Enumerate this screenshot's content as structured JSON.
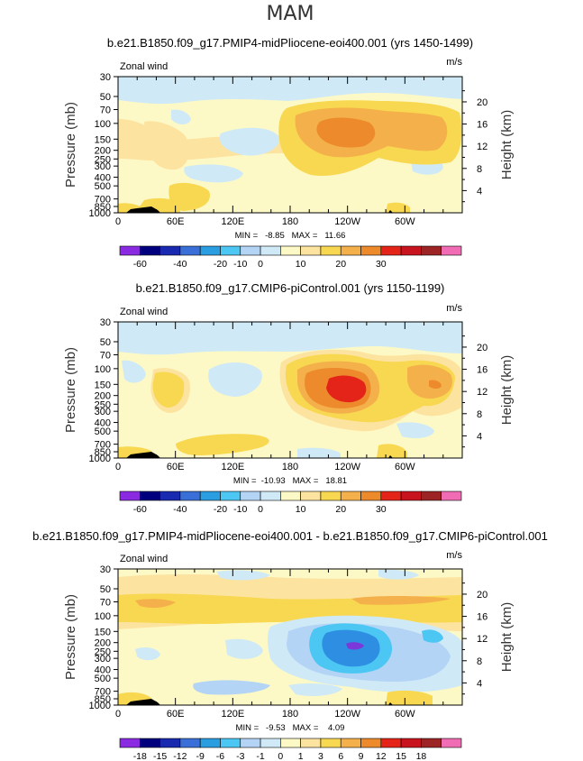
{
  "season": "MAM",
  "colors": {
    "sky": "#cfeaf6",
    "ltyellow": "#fdf9c6",
    "yellow": "#fde3a0",
    "gold": "#f8d850",
    "orange": "#f4b04a",
    "dkorange": "#ec8a2c",
    "red": "#e42418",
    "ltblue": "#b4d4f6",
    "cyan": "#4cc6f2",
    "midblue": "#2e8ee2",
    "purple": "#7c38d8",
    "black": "#000000"
  },
  "chart_data": [
    {
      "type": "contour",
      "title": "b.e21.B1850.f09_g17.PMIP4-midPliocene-eoi400.001 (yrs 1450-1499)",
      "left_label": "Zonal wind",
      "right_label": "m/s",
      "ylabel": "Pressure (mb)",
      "ylabel_right": "Height (km)",
      "xticks": [
        "0",
        "60E",
        "120E",
        "180",
        "120W",
        "60W"
      ],
      "yticks": [
        "30",
        "50",
        "70",
        "100",
        "150",
        "200",
        "250",
        "300",
        "400",
        "500",
        "700",
        "850",
        "1000"
      ],
      "height_ticks": [
        "4",
        "8",
        "12",
        "16",
        "20"
      ],
      "stats": "MIN =   -8.85   MAX =   11.66",
      "min": -8.85,
      "max": 11.66,
      "colorbar_labels": [
        "-60",
        "-40",
        "-20",
        "-10",
        "0",
        "10",
        "20",
        "30"
      ]
    },
    {
      "type": "contour",
      "title": "b.e21.B1850.f09_g17.CMIP6-piControl.001 (yrs 1150-1199)",
      "left_label": "Zonal wind",
      "right_label": "m/s",
      "ylabel": "Pressure (mb)",
      "ylabel_right": "Height (km)",
      "xticks": [
        "0",
        "60E",
        "120E",
        "180",
        "120W",
        "60W"
      ],
      "yticks": [
        "30",
        "50",
        "70",
        "100",
        "150",
        "200",
        "250",
        "300",
        "400",
        "500",
        "700",
        "850",
        "1000"
      ],
      "height_ticks": [
        "4",
        "8",
        "12",
        "16",
        "20"
      ],
      "stats": "MIN =  -10.93   MAX =   18.81",
      "min": -10.93,
      "max": 18.81,
      "colorbar_labels": [
        "-60",
        "-40",
        "-20",
        "-10",
        "0",
        "10",
        "20",
        "30"
      ]
    },
    {
      "type": "contour",
      "title": "b.e21.B1850.f09_g17.PMIP4-midPliocene-eoi400.001 - b.e21.B1850.f09_g17.CMIP6-piControl.001",
      "left_label": "Zonal wind",
      "right_label": "m/s",
      "ylabel": "Pressure (mb)",
      "ylabel_right": "Height (km)",
      "xticks": [
        "0",
        "60E",
        "120E",
        "180",
        "120W",
        "60W"
      ],
      "yticks": [
        "30",
        "50",
        "70",
        "100",
        "150",
        "200",
        "250",
        "300",
        "400",
        "500",
        "700",
        "850",
        "1000"
      ],
      "height_ticks": [
        "4",
        "8",
        "12",
        "16",
        "20"
      ],
      "stats": "MIN =   -9.53   MAX =    4.09",
      "min": -9.53,
      "max": 4.09,
      "colorbar_labels": [
        "-18",
        "-15",
        "-12",
        "-9",
        "-6",
        "-3",
        "-1",
        "0",
        "1",
        "3",
        "6",
        "9",
        "12",
        "15",
        "18"
      ]
    }
  ],
  "colorbars": {
    "abs": [
      "#8a2be2",
      "#00007f",
      "#1a2ab0",
      "#3a6fd8",
      "#2a9ee0",
      "#4cc6f2",
      "#b4d4f6",
      "#cfeaf6",
      "#fdf9c6",
      "#fde3a0",
      "#f8d850",
      "#f4b04a",
      "#ec8a2c",
      "#e42418",
      "#c8141e",
      "#9c2424",
      "#f06cb4"
    ],
    "diff": [
      "#8a2be2",
      "#00007f",
      "#1a2ab0",
      "#3a6fd8",
      "#2a9ee0",
      "#4cc6f2",
      "#b4d4f6",
      "#cfeaf6",
      "#fdf9c6",
      "#fde3a0",
      "#f8d850",
      "#f4b04a",
      "#ec8a2c",
      "#e42418",
      "#c8141e",
      "#9c2424",
      "#f06cb4"
    ]
  }
}
